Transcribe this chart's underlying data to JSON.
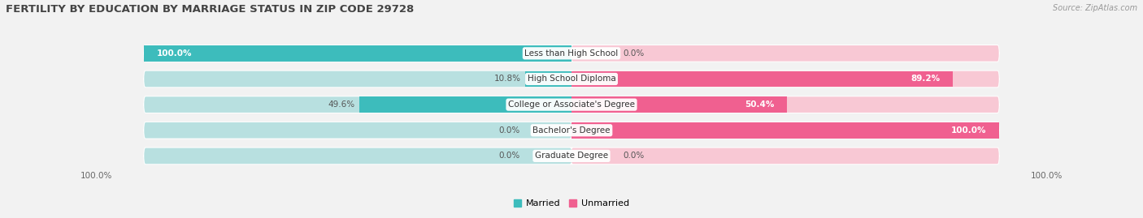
{
  "title": "FERTILITY BY EDUCATION BY MARRIAGE STATUS IN ZIP CODE 29728",
  "source": "Source: ZipAtlas.com",
  "categories": [
    "Less than High School",
    "High School Diploma",
    "College or Associate's Degree",
    "Bachelor's Degree",
    "Graduate Degree"
  ],
  "married": [
    100.0,
    10.8,
    49.6,
    0.0,
    0.0
  ],
  "unmarried": [
    0.0,
    89.2,
    50.4,
    100.0,
    0.0
  ],
  "married_color": "#3dbcbc",
  "unmarried_color": "#f06090",
  "married_color_light": "#b8e0e0",
  "unmarried_color_light": "#f8c8d4",
  "bg_color": "#f2f2f2",
  "row_bg_color": "#e8e8e8",
  "title_fontsize": 9.5,
  "source_fontsize": 7,
  "label_fontsize": 7.5,
  "tick_fontsize": 7.5,
  "legend_fontsize": 8,
  "bar_height": 0.62,
  "axis_left_label": "100.0%",
  "axis_right_label": "100.0%"
}
